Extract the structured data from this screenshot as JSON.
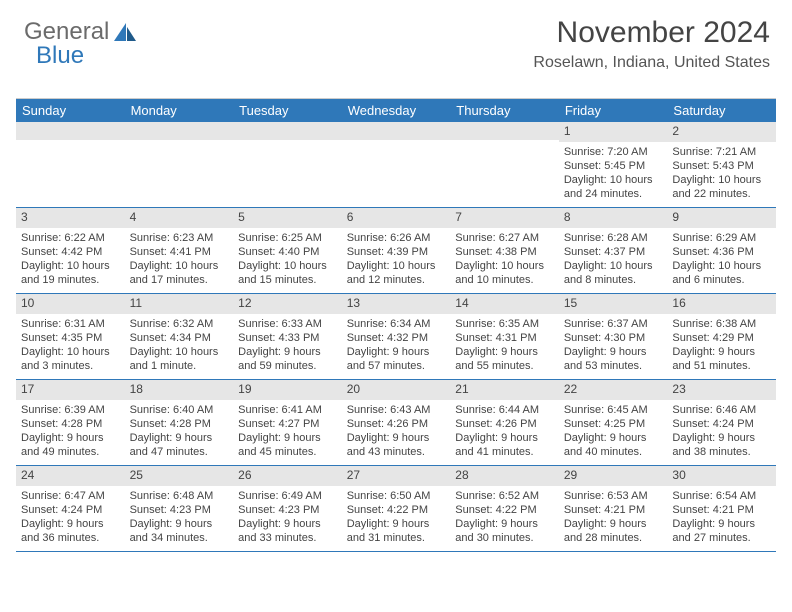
{
  "logo": {
    "text_general": "General",
    "text_blue": "Blue"
  },
  "header": {
    "title": "November 2024",
    "location": "Roselawn, Indiana, United States"
  },
  "colors": {
    "header_blue": "#2f78b9",
    "daynum_bg": "#e6e6e6",
    "rule": "#2f78b9"
  },
  "daysOfWeek": [
    "Sunday",
    "Monday",
    "Tuesday",
    "Wednesday",
    "Thursday",
    "Friday",
    "Saturday"
  ],
  "weeks": [
    [
      null,
      null,
      null,
      null,
      null,
      {
        "n": "1",
        "sunrise": "Sunrise: 7:20 AM",
        "sunset": "Sunset: 5:45 PM",
        "daylight": "Daylight: 10 hours and 24 minutes."
      },
      {
        "n": "2",
        "sunrise": "Sunrise: 7:21 AM",
        "sunset": "Sunset: 5:43 PM",
        "daylight": "Daylight: 10 hours and 22 minutes."
      }
    ],
    [
      {
        "n": "3",
        "sunrise": "Sunrise: 6:22 AM",
        "sunset": "Sunset: 4:42 PM",
        "daylight": "Daylight: 10 hours and 19 minutes."
      },
      {
        "n": "4",
        "sunrise": "Sunrise: 6:23 AM",
        "sunset": "Sunset: 4:41 PM",
        "daylight": "Daylight: 10 hours and 17 minutes."
      },
      {
        "n": "5",
        "sunrise": "Sunrise: 6:25 AM",
        "sunset": "Sunset: 4:40 PM",
        "daylight": "Daylight: 10 hours and 15 minutes."
      },
      {
        "n": "6",
        "sunrise": "Sunrise: 6:26 AM",
        "sunset": "Sunset: 4:39 PM",
        "daylight": "Daylight: 10 hours and 12 minutes."
      },
      {
        "n": "7",
        "sunrise": "Sunrise: 6:27 AM",
        "sunset": "Sunset: 4:38 PM",
        "daylight": "Daylight: 10 hours and 10 minutes."
      },
      {
        "n": "8",
        "sunrise": "Sunrise: 6:28 AM",
        "sunset": "Sunset: 4:37 PM",
        "daylight": "Daylight: 10 hours and 8 minutes."
      },
      {
        "n": "9",
        "sunrise": "Sunrise: 6:29 AM",
        "sunset": "Sunset: 4:36 PM",
        "daylight": "Daylight: 10 hours and 6 minutes."
      }
    ],
    [
      {
        "n": "10",
        "sunrise": "Sunrise: 6:31 AM",
        "sunset": "Sunset: 4:35 PM",
        "daylight": "Daylight: 10 hours and 3 minutes."
      },
      {
        "n": "11",
        "sunrise": "Sunrise: 6:32 AM",
        "sunset": "Sunset: 4:34 PM",
        "daylight": "Daylight: 10 hours and 1 minute."
      },
      {
        "n": "12",
        "sunrise": "Sunrise: 6:33 AM",
        "sunset": "Sunset: 4:33 PM",
        "daylight": "Daylight: 9 hours and 59 minutes."
      },
      {
        "n": "13",
        "sunrise": "Sunrise: 6:34 AM",
        "sunset": "Sunset: 4:32 PM",
        "daylight": "Daylight: 9 hours and 57 minutes."
      },
      {
        "n": "14",
        "sunrise": "Sunrise: 6:35 AM",
        "sunset": "Sunset: 4:31 PM",
        "daylight": "Daylight: 9 hours and 55 minutes."
      },
      {
        "n": "15",
        "sunrise": "Sunrise: 6:37 AM",
        "sunset": "Sunset: 4:30 PM",
        "daylight": "Daylight: 9 hours and 53 minutes."
      },
      {
        "n": "16",
        "sunrise": "Sunrise: 6:38 AM",
        "sunset": "Sunset: 4:29 PM",
        "daylight": "Daylight: 9 hours and 51 minutes."
      }
    ],
    [
      {
        "n": "17",
        "sunrise": "Sunrise: 6:39 AM",
        "sunset": "Sunset: 4:28 PM",
        "daylight": "Daylight: 9 hours and 49 minutes."
      },
      {
        "n": "18",
        "sunrise": "Sunrise: 6:40 AM",
        "sunset": "Sunset: 4:28 PM",
        "daylight": "Daylight: 9 hours and 47 minutes."
      },
      {
        "n": "19",
        "sunrise": "Sunrise: 6:41 AM",
        "sunset": "Sunset: 4:27 PM",
        "daylight": "Daylight: 9 hours and 45 minutes."
      },
      {
        "n": "20",
        "sunrise": "Sunrise: 6:43 AM",
        "sunset": "Sunset: 4:26 PM",
        "daylight": "Daylight: 9 hours and 43 minutes."
      },
      {
        "n": "21",
        "sunrise": "Sunrise: 6:44 AM",
        "sunset": "Sunset: 4:26 PM",
        "daylight": "Daylight: 9 hours and 41 minutes."
      },
      {
        "n": "22",
        "sunrise": "Sunrise: 6:45 AM",
        "sunset": "Sunset: 4:25 PM",
        "daylight": "Daylight: 9 hours and 40 minutes."
      },
      {
        "n": "23",
        "sunrise": "Sunrise: 6:46 AM",
        "sunset": "Sunset: 4:24 PM",
        "daylight": "Daylight: 9 hours and 38 minutes."
      }
    ],
    [
      {
        "n": "24",
        "sunrise": "Sunrise: 6:47 AM",
        "sunset": "Sunset: 4:24 PM",
        "daylight": "Daylight: 9 hours and 36 minutes."
      },
      {
        "n": "25",
        "sunrise": "Sunrise: 6:48 AM",
        "sunset": "Sunset: 4:23 PM",
        "daylight": "Daylight: 9 hours and 34 minutes."
      },
      {
        "n": "26",
        "sunrise": "Sunrise: 6:49 AM",
        "sunset": "Sunset: 4:23 PM",
        "daylight": "Daylight: 9 hours and 33 minutes."
      },
      {
        "n": "27",
        "sunrise": "Sunrise: 6:50 AM",
        "sunset": "Sunset: 4:22 PM",
        "daylight": "Daylight: 9 hours and 31 minutes."
      },
      {
        "n": "28",
        "sunrise": "Sunrise: 6:52 AM",
        "sunset": "Sunset: 4:22 PM",
        "daylight": "Daylight: 9 hours and 30 minutes."
      },
      {
        "n": "29",
        "sunrise": "Sunrise: 6:53 AM",
        "sunset": "Sunset: 4:21 PM",
        "daylight": "Daylight: 9 hours and 28 minutes."
      },
      {
        "n": "30",
        "sunrise": "Sunrise: 6:54 AM",
        "sunset": "Sunset: 4:21 PM",
        "daylight": "Daylight: 9 hours and 27 minutes."
      }
    ]
  ]
}
